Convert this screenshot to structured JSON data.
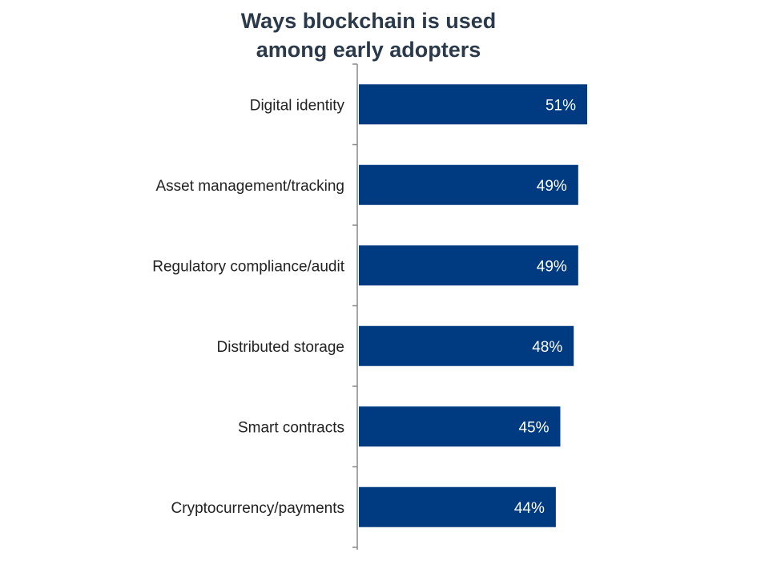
{
  "chart_data": {
    "type": "bar",
    "orientation": "horizontal",
    "title_lines": [
      "Ways blockchain is used",
      "among early adopters"
    ],
    "categories": [
      "Digital identity",
      "Asset management/tracking",
      "Regulatory compliance/audit",
      "Distributed storage",
      "Smart contracts",
      "Cryptocurrency/payments"
    ],
    "values": [
      51,
      49,
      49,
      48,
      45,
      44
    ],
    "value_labels": [
      "51%",
      "49%",
      "49%",
      "48%",
      "45%",
      "44%"
    ],
    "unit": "%",
    "grid": false,
    "legend": "none",
    "colors": {
      "bar": "#003a80",
      "axis": "#888888",
      "title": "#2a3a4a",
      "value_text": "#ffffff"
    }
  }
}
